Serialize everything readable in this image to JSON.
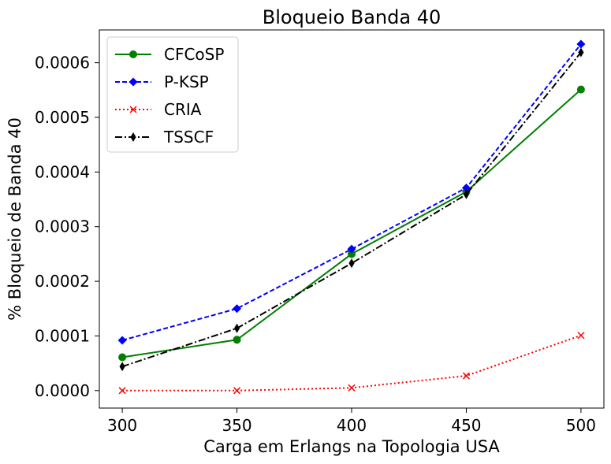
{
  "chart_data": {
    "type": "line",
    "title": "Bloqueio Banda 40",
    "xlabel": "Carga em Erlangs na Topologia USA",
    "ylabel": "% Bloqueio de Banda 40",
    "x": [
      300,
      350,
      400,
      450,
      500
    ],
    "x_tick_labels": [
      "300",
      "350",
      "400",
      "450",
      "500"
    ],
    "xlim": [
      290,
      510
    ],
    "ylim": [
      -3.2e-05,
      0.00066
    ],
    "y_ticks": [
      0,
      0.0001,
      0.0002,
      0.0003,
      0.0004,
      0.0005,
      0.0006
    ],
    "y_tick_labels": [
      "0.0000",
      "0.0001",
      "0.0002",
      "0.0003",
      "0.0004",
      "0.0005",
      "0.0006"
    ],
    "grid": false,
    "legend_position": "top-left",
    "series": [
      {
        "name": "CFCoSP",
        "color": "#008000",
        "dash": "solid",
        "marker": "circle",
        "values": [
          6.1e-05,
          9.3e-05,
          0.00025,
          0.000364,
          0.000551
        ]
      },
      {
        "name": "P-KSP",
        "color": "#0000ff",
        "dash": "dashed",
        "marker": "diamond",
        "values": [
          9.2e-05,
          0.00015,
          0.000259,
          0.000371,
          0.000634
        ]
      },
      {
        "name": "CRIA",
        "color": "#ff0000",
        "dash": "dotted",
        "marker": "x",
        "values": [
          0.0,
          0.0,
          5e-06,
          2.7e-05,
          0.000101
        ]
      },
      {
        "name": "TSSCF",
        "color": "#000000",
        "dash": "dashdot",
        "marker": "thin-diamond",
        "values": [
          4.4e-05,
          0.000114,
          0.000233,
          0.000359,
          0.000619
        ]
      }
    ]
  }
}
